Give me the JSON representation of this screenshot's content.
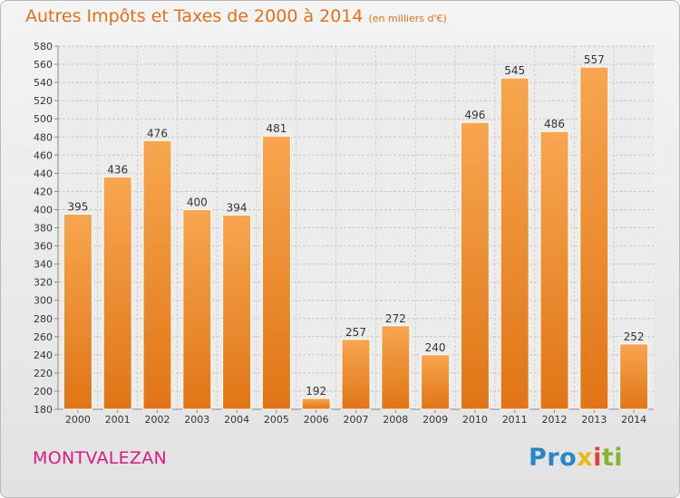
{
  "header": {
    "title": "Autres Impôts et Taxes de 2000 à 2014",
    "unit": "(en milliers d'€)"
  },
  "footer": {
    "commune": "MONTVALEZAN",
    "logo": [
      "Pro",
      "x",
      "i",
      "ti"
    ]
  },
  "colors": {
    "bar_light": "#f7a64f",
    "bar_dark": "#e07516",
    "title": "#e2701c",
    "commune": "#d81b84"
  },
  "chart_data": {
    "type": "bar",
    "categories": [
      "2000",
      "2001",
      "2002",
      "2003",
      "2004",
      "2005",
      "2006",
      "2007",
      "2008",
      "2009",
      "2010",
      "2011",
      "2012",
      "2013",
      "2014"
    ],
    "values": [
      395,
      436,
      476,
      400,
      394,
      481,
      192,
      257,
      272,
      240,
      496,
      545,
      486,
      557,
      252
    ],
    "data_labels": [
      "395",
      "436",
      "476",
      "400",
      "394",
      "481",
      "192",
      "257",
      "272",
      "240",
      "496",
      "545",
      "486",
      "557",
      "252"
    ],
    "ylim": [
      180,
      580
    ],
    "ytick_step": 20,
    "grid": true,
    "legend": "none"
  }
}
